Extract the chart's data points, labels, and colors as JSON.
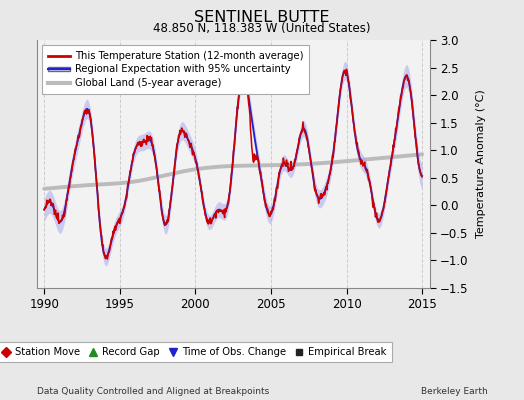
{
  "title": "SENTINEL BUTTE",
  "subtitle": "48.850 N, 118.383 W (United States)",
  "ylabel": "Temperature Anomaly (°C)",
  "footer_left": "Data Quality Controlled and Aligned at Breakpoints",
  "footer_right": "Berkeley Earth",
  "xlim": [
    1989.5,
    2015.5
  ],
  "ylim": [
    -1.5,
    3.0
  ],
  "yticks": [
    -1.5,
    -1.0,
    -0.5,
    0.0,
    0.5,
    1.0,
    1.5,
    2.0,
    2.5,
    3.0
  ],
  "xticks": [
    1990,
    1995,
    2000,
    2005,
    2010,
    2015
  ],
  "bg_color": "#e8e8e8",
  "plot_bg_color": "#f2f2f2",
  "regional_color": "#2222cc",
  "regional_shade_color": "#aaaaee",
  "station_color": "#cc0000",
  "global_color": "#bbbbbb",
  "legend_station": "This Temperature Station (12-month average)",
  "legend_regional": "Regional Expectation with 95% uncertainty",
  "legend_global": "Global Land (5-year average)",
  "bottom_legend": [
    {
      "marker": "D",
      "color": "#cc0000",
      "label": "Station Move"
    },
    {
      "marker": "^",
      "color": "#228B22",
      "label": "Record Gap"
    },
    {
      "marker": "v",
      "color": "#2222cc",
      "label": "Time of Obs. Change"
    },
    {
      "marker": "s",
      "color": "#222222",
      "label": "Empirical Break"
    }
  ]
}
